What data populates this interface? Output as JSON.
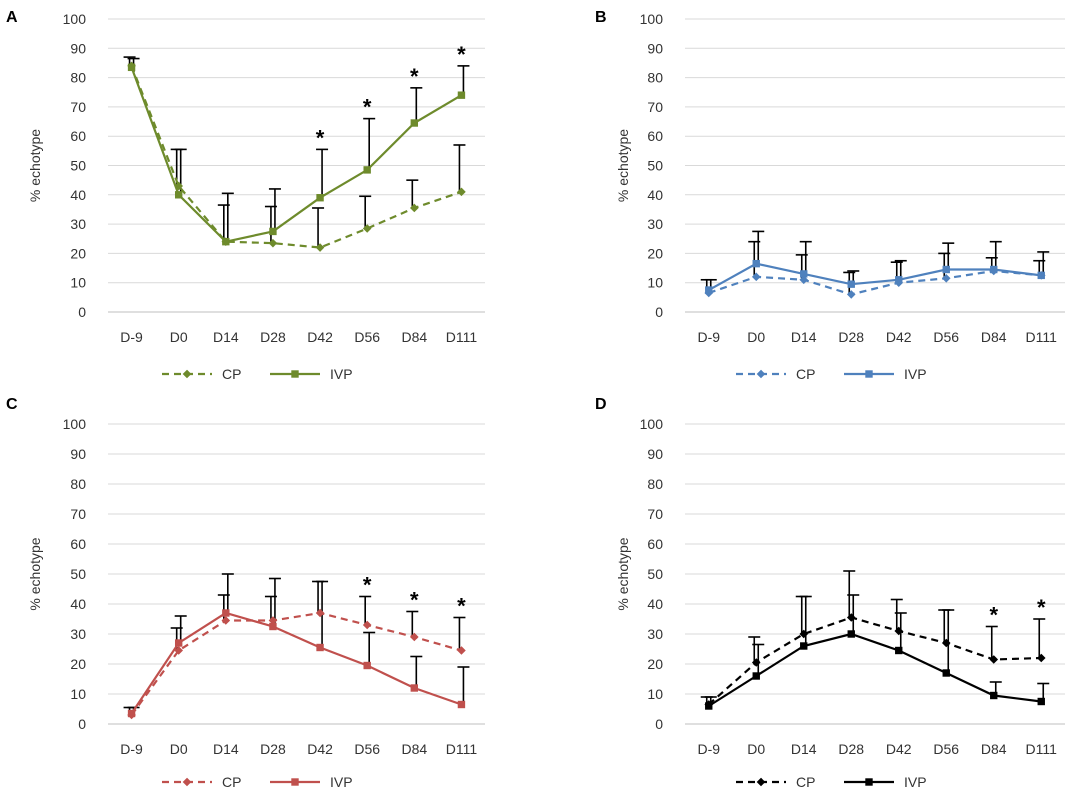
{
  "chart_data": [
    {
      "type": "line",
      "panel_label": "A",
      "ylabel": "% echotype",
      "xlabel": "",
      "ylim": [
        0,
        100
      ],
      "yticks": [
        0,
        10,
        20,
        30,
        40,
        50,
        60,
        70,
        80,
        90,
        100
      ],
      "categories": [
        "D-9",
        "D0",
        "D14",
        "D28",
        "D42",
        "D56",
        "D84",
        "D111"
      ],
      "legend": [
        "CP",
        "IVP"
      ],
      "legend_position": "bottom",
      "color": "#6e8b2c",
      "series": [
        {
          "name": "CP",
          "style": "dashed",
          "marker": "diamond",
          "values": [
            84,
            43,
            24,
            23.5,
            22,
            28.5,
            35.5,
            41
          ],
          "errors": [
            3,
            12.5,
            12.5,
            12.5,
            13.5,
            11,
            9.5,
            16
          ]
        },
        {
          "name": "IVP",
          "style": "solid",
          "marker": "square",
          "values": [
            83.5,
            40,
            24,
            27.5,
            39,
            48.5,
            64.5,
            74
          ],
          "errors": [
            3,
            15.5,
            16.5,
            14.5,
            16.5,
            17.5,
            12,
            10
          ]
        }
      ],
      "annotations": [
        {
          "category": "D42",
          "text": "*"
        },
        {
          "category": "D56",
          "text": "*"
        },
        {
          "category": "D84",
          "text": "*"
        },
        {
          "category": "D111",
          "text": "*"
        }
      ]
    },
    {
      "type": "line",
      "panel_label": "B",
      "ylabel": "% echotype",
      "xlabel": "",
      "ylim": [
        0,
        100
      ],
      "yticks": [
        0,
        10,
        20,
        30,
        40,
        50,
        60,
        70,
        80,
        90,
        100
      ],
      "categories": [
        "D-9",
        "D0",
        "D14",
        "D28",
        "D42",
        "D56",
        "D84",
        "D111"
      ],
      "legend": [
        "CP",
        "IVP"
      ],
      "legend_position": "bottom",
      "color": "#4f81bd",
      "series": [
        {
          "name": "CP",
          "style": "dashed",
          "marker": "diamond",
          "values": [
            6.5,
            12,
            11,
            6,
            10,
            11.5,
            14,
            12.5
          ],
          "errors": [
            4.5,
            12,
            8.5,
            7.5,
            7,
            8.5,
            4.5,
            5
          ]
        },
        {
          "name": "IVP",
          "style": "solid",
          "marker": "square",
          "values": [
            7.5,
            16.5,
            13,
            9.5,
            11,
            14.5,
            14.5,
            12.5
          ],
          "errors": [
            3.5,
            11,
            11,
            4.5,
            6.5,
            9,
            9.5,
            8
          ]
        }
      ],
      "annotations": []
    },
    {
      "type": "line",
      "panel_label": "C",
      "ylabel": "% echotype",
      "xlabel": "",
      "ylim": [
        0,
        100
      ],
      "yticks": [
        0,
        10,
        20,
        30,
        40,
        50,
        60,
        70,
        80,
        90,
        100
      ],
      "categories": [
        "D-9",
        "D0",
        "D14",
        "D28",
        "D42",
        "D56",
        "D84",
        "D111"
      ],
      "legend": [
        "CP",
        "IVP"
      ],
      "legend_position": "bottom",
      "color": "#c0504d",
      "series": [
        {
          "name": "CP",
          "style": "dashed",
          "marker": "diamond",
          "values": [
            3,
            24.5,
            34.5,
            34.5,
            37,
            33,
            29,
            24.5
          ],
          "errors": [
            2.5,
            7.5,
            8.5,
            8,
            10.5,
            9.5,
            8.5,
            11
          ]
        },
        {
          "name": "IVP",
          "style": "solid",
          "marker": "square",
          "values": [
            3.5,
            27,
            37,
            32.5,
            25.5,
            19.5,
            12,
            6.5
          ],
          "errors": [
            2,
            9,
            13,
            16,
            22,
            11,
            10.5,
            12.5
          ]
        }
      ],
      "annotations": [
        {
          "category": "D56",
          "text": "*"
        },
        {
          "category": "D84",
          "text": "*"
        },
        {
          "category": "D111",
          "text": "*"
        }
      ]
    },
    {
      "type": "line",
      "panel_label": "D",
      "ylabel": "% echotype",
      "xlabel": "",
      "ylim": [
        0,
        100
      ],
      "yticks": [
        0,
        10,
        20,
        30,
        40,
        50,
        60,
        70,
        80,
        90,
        100
      ],
      "categories": [
        "D-9",
        "D0",
        "D14",
        "D28",
        "D42",
        "D56",
        "D84",
        "D111"
      ],
      "legend": [
        "CP",
        "IVP"
      ],
      "legend_position": "bottom",
      "color": "#000000",
      "series": [
        {
          "name": "CP",
          "style": "dashed",
          "marker": "diamond",
          "values": [
            6.5,
            20.5,
            30,
            35.5,
            31,
            27,
            21.5,
            22
          ],
          "errors": [
            2.5,
            8.5,
            12.5,
            15.5,
            10.5,
            11,
            11,
            13
          ]
        },
        {
          "name": "IVP",
          "style": "solid",
          "marker": "square",
          "values": [
            6,
            16,
            26,
            30,
            24.5,
            17,
            9.5,
            7.5
          ],
          "errors": [
            3,
            10.5,
            16.5,
            13,
            12.5,
            21,
            4.5,
            6
          ]
        }
      ],
      "annotations": [
        {
          "category": "D84",
          "text": "*"
        },
        {
          "category": "D111",
          "text": "*"
        }
      ]
    }
  ]
}
